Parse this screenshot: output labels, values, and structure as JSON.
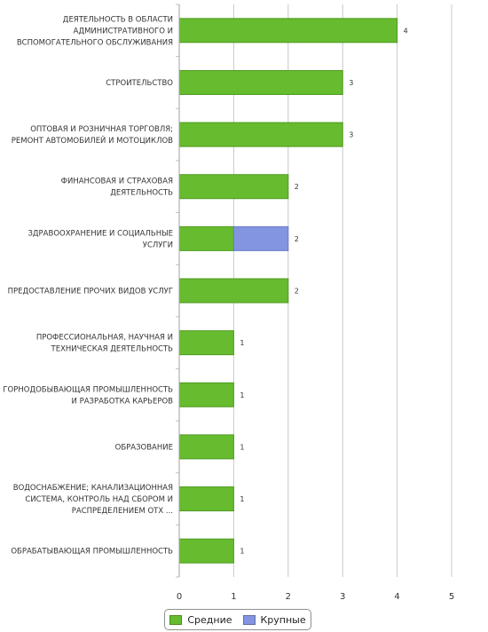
{
  "chart_data": {
    "type": "bar",
    "orientation": "horizontal",
    "stacked": true,
    "categories": [
      [
        "ДЕЯТЕЛЬНОСТЬ В ОБЛАСТИ",
        "АДМИНИСТРАТИВНОГО И",
        "ВСПОМОГАТЕЛЬНОГО ОБСЛУЖИВАНИЯ"
      ],
      [
        "СТРОИТЕЛЬСТВО"
      ],
      [
        "ОПТОВАЯ И РОЗНИЧНАЯ ТОРГОВЛЯ;",
        "РЕМОНТ АВТОМОБИЛЕЙ И МОТОЦИКЛОВ"
      ],
      [
        "ФИНАНСОВАЯ И СТРАХОВАЯ",
        "ДЕЯТЕЛЬНОСТЬ"
      ],
      [
        "ЗДРАВООХРАНЕНИЕ И СОЦИАЛЬНЫЕ",
        "УСЛУГИ"
      ],
      [
        "ПРЕДОСТАВЛЕНИЕ ПРОЧИХ ВИДОВ УСЛУГ"
      ],
      [
        "ПРОФЕССИОНАЛЬНАЯ, НАУЧНАЯ И",
        "ТЕХНИЧЕСКАЯ ДЕЯТЕЛЬНОСТЬ"
      ],
      [
        "ГОРНОДОБЫВАЮЩАЯ ПРОМЫШЛЕННОСТЬ",
        "И РАЗРАБОТКА КАРЬЕРОВ"
      ],
      [
        "ОБРАЗОВАНИЕ"
      ],
      [
        "ВОДОСНАБЖЕНИЕ; КАНАЛИЗАЦИОННАЯ",
        "СИСТЕМА, КОНТРОЛЬ НАД СБОРОМ И",
        "РАСПРЕДЕЛЕНИЕМ ОТХ ..."
      ],
      [
        "ОБРАБАТЫВАЮЩАЯ ПРОМЫШЛЕННОСТЬ"
      ]
    ],
    "series": [
      {
        "name": "Средние",
        "color": "#66bb2f",
        "values": [
          4,
          3,
          3,
          2,
          1,
          2,
          1,
          1,
          1,
          1,
          1
        ]
      },
      {
        "name": "Крупные",
        "color": "#8395e0",
        "values": [
          0,
          0,
          0,
          0,
          1,
          0,
          0,
          0,
          0,
          0,
          0
        ]
      }
    ],
    "totals": [
      "4",
      "3",
      "3",
      "2",
      "2",
      "2",
      "1",
      "1",
      "1",
      "1",
      "1"
    ],
    "xticks": [
      "0",
      "1",
      "2",
      "3",
      "4",
      "5"
    ],
    "xlim": [
      0,
      5
    ],
    "grid": true,
    "legend": "bottom-center",
    "title": "",
    "xlabel": "",
    "ylabel": ""
  }
}
